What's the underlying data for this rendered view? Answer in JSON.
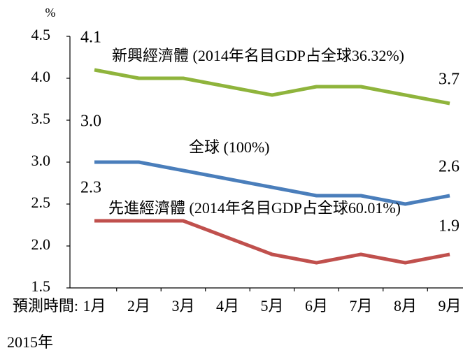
{
  "chart_data": {
    "type": "line",
    "y_unit": "%",
    "x_prefix": "預測時間:",
    "x_note": "2015年",
    "categories": [
      "1月",
      "2月",
      "3月",
      "4月",
      "5月",
      "6月",
      "7月",
      "8月",
      "9月"
    ],
    "series": [
      {
        "name": "新興經濟體 (2014年名目GDP占全球36.32%)",
        "color": "#8fb43c",
        "values": [
          4.1,
          4.0,
          4.0,
          3.9,
          3.8,
          3.9,
          3.9,
          3.8,
          3.7
        ],
        "value_labels": [
          "4.1",
          null,
          null,
          null,
          null,
          null,
          null,
          null,
          "3.7"
        ]
      },
      {
        "name": "全球 (100%)",
        "color": "#4a7ebb",
        "values": [
          3.0,
          3.0,
          2.9,
          2.8,
          2.7,
          2.6,
          2.6,
          2.5,
          2.6
        ],
        "value_labels": [
          "3.0",
          null,
          null,
          null,
          null,
          null,
          null,
          null,
          "2.6"
        ]
      },
      {
        "name": "先進經濟體 (2014年名目GDP占全球60.01%)",
        "color": "#c0504d",
        "values": [
          2.3,
          2.3,
          2.3,
          2.1,
          1.9,
          1.8,
          1.9,
          1.8,
          1.9
        ],
        "value_labels": [
          "2.3",
          null,
          null,
          null,
          null,
          null,
          null,
          null,
          "1.9"
        ]
      }
    ],
    "ylim": [
      1.5,
      4.5
    ],
    "yticks": [
      1.5,
      {
        "value": 2,
        "label": "2.0"
      },
      2.5,
      {
        "value": 3,
        "label": "3.0"
      },
      3.5,
      {
        "value": 4,
        "label": "4.0"
      },
      4.5
    ]
  }
}
